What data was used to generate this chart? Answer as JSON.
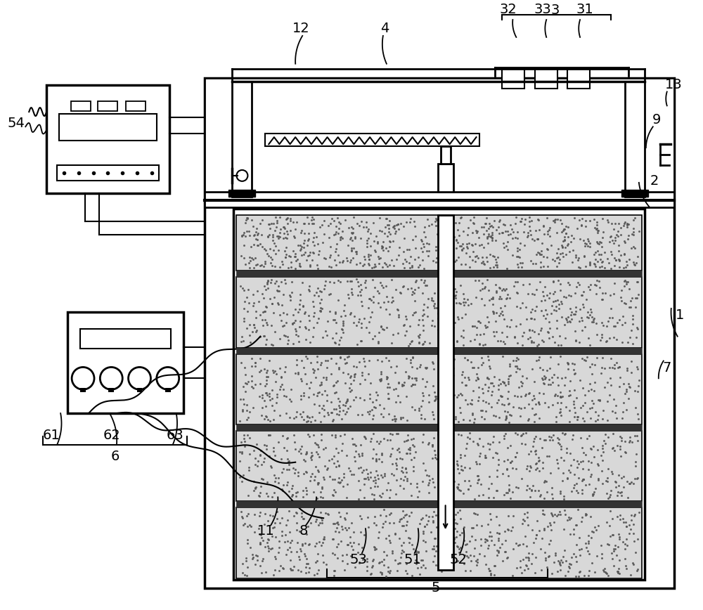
{
  "bg_color": "#ffffff",
  "fig_width": 10.0,
  "fig_height": 8.68,
  "lc": "#000000",
  "soil_bg": "#d8d8d8",
  "soil_dot": "#555555",
  "plate_color": "#333333"
}
